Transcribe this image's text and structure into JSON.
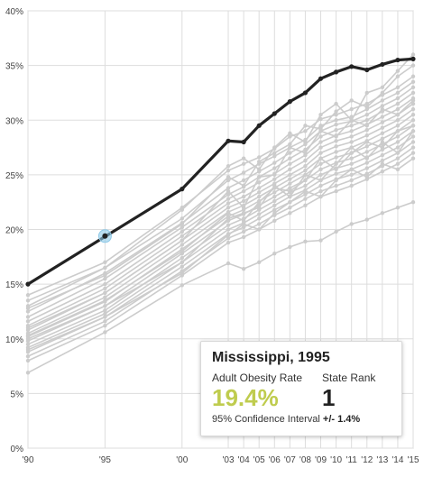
{
  "chart_data": {
    "type": "line",
    "title": "",
    "xlabel": "",
    "ylabel": "",
    "ylim": [
      0,
      40
    ],
    "xlim": [
      1990,
      2015
    ],
    "grid": true,
    "x_ticks": [
      1990,
      1995,
      2000,
      2003,
      2004,
      2005,
      2006,
      2007,
      2008,
      2009,
      2010,
      2011,
      2012,
      2013,
      2014,
      2015
    ],
    "x_tick_labels": [
      "'90",
      "'95",
      "'00",
      "'03",
      "'04",
      "'05",
      "'06",
      "'07",
      "'08",
      "'09",
      "'10",
      "'11",
      "'12",
      "'13",
      "'14",
      "'15"
    ],
    "y_ticks": [
      0,
      5,
      10,
      15,
      20,
      25,
      30,
      35,
      40
    ],
    "y_tick_labels": [
      "0%",
      "5%",
      "10%",
      "15%",
      "20%",
      "25%",
      "30%",
      "35%",
      "40%"
    ],
    "highlight_series": {
      "name": "Mississippi",
      "color": "#222222",
      "x": [
        1990,
        2000,
        2003,
        2004,
        2005,
        2006,
        2007,
        2008,
        2009,
        2010,
        2011,
        2012,
        2013,
        2014,
        2015
      ],
      "values": [
        15.0,
        23.7,
        28.1,
        28.0,
        29.5,
        30.6,
        31.7,
        32.5,
        33.8,
        34.4,
        34.9,
        34.6,
        35.1,
        35.5,
        35.6
      ]
    },
    "highlight_point": {
      "x": 1995,
      "y": 19.4,
      "color": "#8ec9e8"
    },
    "background_series_color": "#cccccc",
    "background_series": [
      {
        "x": [
          1990,
          1995,
          2000,
          2003,
          2004,
          2005,
          2006,
          2007,
          2008,
          2009,
          2010,
          2011,
          2012,
          2013,
          2014,
          2015
        ],
        "values": [
          14.0,
          17.0,
          22.0,
          25.4,
          26.0,
          26.6,
          27.4,
          28.5,
          29.0,
          30.1,
          30.5,
          31.0,
          31.5,
          32.3,
          33.0,
          34.0
        ]
      },
      {
        "x": [
          1990,
          1995,
          2000,
          2003,
          2004,
          2005,
          2006,
          2007,
          2008,
          2009,
          2010,
          2011,
          2012,
          2013,
          2014,
          2015
        ],
        "values": [
          13.0,
          16.5,
          21.0,
          24.5,
          25.2,
          26.0,
          26.7,
          27.5,
          28.2,
          29.5,
          30.0,
          30.3,
          31.0,
          31.8,
          32.5,
          33.5
        ]
      },
      {
        "x": [
          1990,
          1995,
          2000,
          2003,
          2004,
          2005,
          2006,
          2007,
          2008,
          2009,
          2010,
          2011,
          2012,
          2013,
          2014,
          2015
        ],
        "values": [
          12.5,
          16.0,
          20.6,
          23.8,
          24.5,
          25.3,
          26.1,
          27.0,
          27.8,
          29.0,
          29.6,
          29.9,
          30.5,
          31.3,
          32.0,
          33.0
        ]
      },
      {
        "x": [
          1990,
          1995,
          2000,
          2003,
          2004,
          2005,
          2006,
          2007,
          2008,
          2009,
          2010,
          2011,
          2012,
          2013,
          2014,
          2015
        ],
        "values": [
          12.0,
          15.5,
          20.2,
          23.2,
          23.9,
          24.8,
          25.6,
          26.5,
          27.3,
          28.5,
          29.1,
          29.5,
          30.0,
          30.8,
          31.5,
          32.5
        ]
      },
      {
        "x": [
          1990,
          1995,
          2000,
          2003,
          2004,
          2005,
          2006,
          2007,
          2008,
          2009,
          2010,
          2011,
          2012,
          2013,
          2014,
          2015
        ],
        "values": [
          11.6,
          15.0,
          19.8,
          22.8,
          23.5,
          24.3,
          25.1,
          26.0,
          26.8,
          28.0,
          28.6,
          29.0,
          29.6,
          30.3,
          31.0,
          32.0
        ]
      },
      {
        "x": [
          1990,
          1995,
          2000,
          2003,
          2004,
          2005,
          2006,
          2007,
          2008,
          2009,
          2010,
          2011,
          2012,
          2013,
          2014,
          2015
        ],
        "values": [
          11.2,
          14.6,
          19.4,
          22.4,
          23.0,
          23.8,
          24.6,
          25.5,
          26.3,
          27.5,
          28.1,
          28.5,
          29.1,
          29.8,
          30.5,
          31.5
        ]
      },
      {
        "x": [
          1990,
          1995,
          2000,
          2003,
          2004,
          2005,
          2006,
          2007,
          2008,
          2009,
          2010,
          2011,
          2012,
          2013,
          2014,
          2015
        ],
        "values": [
          10.8,
          14.2,
          19.0,
          22.0,
          22.6,
          23.4,
          24.2,
          25.0,
          25.8,
          27.0,
          27.6,
          28.0,
          28.6,
          29.3,
          30.0,
          31.0
        ]
      },
      {
        "x": [
          1990,
          1995,
          2000,
          2003,
          2004,
          2005,
          2006,
          2007,
          2008,
          2009,
          2010,
          2011,
          2012,
          2013,
          2014,
          2015
        ],
        "values": [
          10.5,
          13.8,
          18.6,
          21.6,
          22.2,
          23.0,
          23.8,
          24.6,
          25.4,
          26.5,
          27.1,
          27.5,
          28.1,
          28.8,
          29.5,
          30.5
        ]
      },
      {
        "x": [
          1990,
          1995,
          2000,
          2003,
          2004,
          2005,
          2006,
          2007,
          2008,
          2009,
          2010,
          2011,
          2012,
          2013,
          2014,
          2015
        ],
        "values": [
          10.2,
          13.4,
          18.2,
          21.2,
          21.8,
          22.6,
          23.4,
          24.2,
          25.0,
          26.0,
          26.6,
          27.0,
          27.6,
          28.3,
          29.0,
          30.0
        ]
      },
      {
        "x": [
          1990,
          1995,
          2000,
          2003,
          2004,
          2005,
          2006,
          2007,
          2008,
          2009,
          2010,
          2011,
          2012,
          2013,
          2014,
          2015
        ],
        "values": [
          9.8,
          13.0,
          17.8,
          20.8,
          21.4,
          22.2,
          23.0,
          23.8,
          24.5,
          25.5,
          26.1,
          26.5,
          27.1,
          27.8,
          28.5,
          29.5
        ]
      },
      {
        "x": [
          1990,
          1995,
          2000,
          2003,
          2004,
          2005,
          2006,
          2007,
          2008,
          2009,
          2010,
          2011,
          2012,
          2013,
          2014,
          2015
        ],
        "values": [
          9.5,
          12.6,
          17.4,
          20.4,
          21.0,
          21.8,
          22.6,
          23.4,
          24.0,
          25.0,
          25.6,
          26.0,
          26.6,
          27.3,
          28.0,
          29.0
        ]
      },
      {
        "x": [
          1990,
          1995,
          2000,
          2003,
          2004,
          2005,
          2006,
          2007,
          2008,
          2009,
          2010,
          2011,
          2012,
          2013,
          2014,
          2015
        ],
        "values": [
          9.2,
          12.3,
          17.0,
          20.0,
          20.6,
          21.4,
          22.2,
          23.0,
          23.6,
          24.5,
          25.1,
          25.5,
          26.1,
          26.8,
          27.5,
          28.5
        ]
      },
      {
        "x": [
          1990,
          1995,
          2000,
          2003,
          2004,
          2005,
          2006,
          2007,
          2008,
          2009,
          2010,
          2011,
          2012,
          2013,
          2014,
          2015
        ],
        "values": [
          8.8,
          12.0,
          16.6,
          19.6,
          20.2,
          21.0,
          21.8,
          22.5,
          23.2,
          24.0,
          24.6,
          25.0,
          25.6,
          26.3,
          27.0,
          28.0
        ]
      },
      {
        "x": [
          1990,
          1995,
          2000,
          2003,
          2004,
          2005,
          2006,
          2007,
          2008,
          2009,
          2010,
          2011,
          2012,
          2013,
          2014,
          2015
        ],
        "values": [
          8.4,
          11.6,
          16.2,
          19.2,
          19.8,
          20.5,
          21.3,
          22.0,
          22.8,
          23.5,
          24.0,
          24.5,
          25.1,
          25.8,
          26.5,
          27.5
        ]
      },
      {
        "x": [
          1990,
          1995,
          2000,
          2003,
          2004,
          2005,
          2006,
          2007,
          2008,
          2009,
          2010,
          2011,
          2012,
          2013,
          2014,
          2015
        ],
        "values": [
          8.0,
          11.2,
          15.8,
          18.8,
          19.3,
          20.0,
          20.8,
          21.5,
          22.2,
          23.0,
          23.5,
          24.0,
          24.6,
          25.3,
          26.0,
          27.0
        ]
      },
      {
        "x": [
          1990,
          1995,
          2000,
          2003,
          2004,
          2005,
          2006,
          2007,
          2008,
          2009,
          2010,
          2011,
          2012,
          2013,
          2014,
          2015
        ],
        "values": [
          6.9,
          10.6,
          14.9,
          16.9,
          16.4,
          17.0,
          17.8,
          18.4,
          18.9,
          19.0,
          19.8,
          20.5,
          20.9,
          21.5,
          22.0,
          22.5
        ]
      },
      {
        "x": [
          1990,
          1995,
          2000,
          2003,
          2004,
          2005,
          2006,
          2007,
          2008,
          2009,
          2010,
          2011,
          2012,
          2013,
          2014,
          2015
        ],
        "values": [
          12.8,
          15.8,
          20.5,
          24.8,
          24.0,
          26.2,
          27.0,
          27.8,
          29.5,
          29.2,
          30.8,
          31.8,
          31.2,
          32.5,
          34.0,
          35.0
        ]
      },
      {
        "x": [
          1990,
          1995,
          2000,
          2003,
          2004,
          2005,
          2006,
          2007,
          2008,
          2009,
          2010,
          2011,
          2012,
          2013,
          2014,
          2015
        ],
        "values": [
          11.0,
          14.2,
          19.0,
          23.5,
          22.0,
          24.8,
          25.0,
          27.5,
          27.0,
          29.0,
          28.5,
          30.0,
          29.5,
          31.0,
          30.5,
          31.8
        ]
      },
      {
        "x": [
          1990,
          1995,
          2000,
          2003,
          2004,
          2005,
          2006,
          2007,
          2008,
          2009,
          2010,
          2011,
          2012,
          2013,
          2014,
          2015
        ],
        "values": [
          10.0,
          13.0,
          17.0,
          21.0,
          21.5,
          22.0,
          24.0,
          23.0,
          25.0,
          24.5,
          26.0,
          27.5,
          26.5,
          28.0,
          27.0,
          29.0
        ]
      },
      {
        "x": [
          1990,
          1995,
          2000,
          2003,
          2004,
          2005,
          2006,
          2007,
          2008,
          2009,
          2010,
          2011,
          2012,
          2013,
          2014,
          2015
        ],
        "values": [
          13.5,
          16.5,
          21.8,
          25.8,
          26.5,
          25.5,
          27.5,
          28.8,
          28.0,
          30.5,
          31.5,
          30.0,
          32.5,
          33.0,
          34.5,
          36.0
        ]
      },
      {
        "x": [
          1990,
          1995,
          2000,
          2003,
          2004,
          2005,
          2006,
          2007,
          2008,
          2009,
          2010,
          2011,
          2012,
          2013,
          2014,
          2015
        ],
        "values": [
          9.0,
          12.0,
          16.0,
          19.5,
          20.5,
          20.0,
          21.5,
          22.5,
          23.5,
          23.0,
          24.5,
          25.5,
          24.8,
          26.0,
          25.5,
          26.5
        ]
      },
      {
        "x": [
          1990,
          1995,
          2000,
          2003,
          2004,
          2005,
          2006,
          2007,
          2008,
          2009,
          2010,
          2011,
          2012,
          2013,
          2014,
          2015
        ],
        "values": [
          10.3,
          13.5,
          18.0,
          21.5,
          20.8,
          22.5,
          23.8,
          23.5,
          24.5,
          26.5,
          25.5,
          27.0,
          28.0,
          27.5,
          29.0,
          29.5
        ]
      }
    ]
  },
  "tooltip": {
    "title": "Mississippi, 1995",
    "rate_label": "Adult Obesity Rate",
    "rate_value": "19.4%",
    "rank_label": "State Rank",
    "rank_value": "1",
    "ci_label": "95% Confidence Interval",
    "ci_value": "+/- 1.4%",
    "accent_color": "#bfcc4e"
  }
}
